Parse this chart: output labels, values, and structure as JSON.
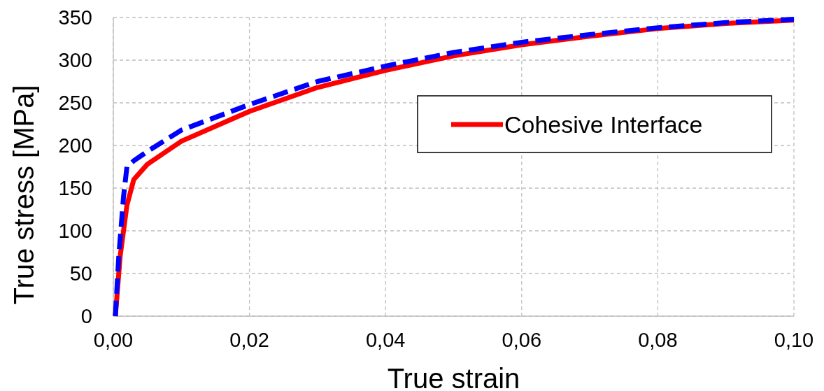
{
  "chart_data": {
    "type": "line",
    "xlabel": "True strain",
    "ylabel": "True stress [MPa]",
    "xlim": [
      0,
      0.1
    ],
    "xticks": [
      {
        "value": 0,
        "label": "0,00"
      },
      {
        "value": 0.02,
        "label": "0,02"
      },
      {
        "value": 0.04,
        "label": "0,04"
      },
      {
        "value": 0.06,
        "label": "0,06"
      },
      {
        "value": 0.08,
        "label": "0,08"
      },
      {
        "value": 0.1,
        "label": "0,10"
      }
    ],
    "ylim": [
      0,
      350
    ],
    "yticks": [
      0,
      50,
      100,
      150,
      200,
      250,
      300,
      350
    ],
    "grid": true,
    "legend": "right",
    "series": [
      {
        "name": "Cohesive Interface",
        "color": "#ff0000",
        "line_style": "solid",
        "x": [
          0.0003,
          0.001,
          0.002,
          0.003,
          0.005,
          0.01,
          0.02,
          0.03,
          0.04,
          0.05,
          0.06,
          0.07,
          0.08,
          0.09,
          0.1
        ],
        "values": [
          0,
          70,
          130,
          160,
          178,
          205,
          240,
          268,
          288,
          305,
          318,
          328,
          337,
          343,
          347
        ]
      },
      {
        "color": "#0000ff",
        "line_style": "dashed",
        "x": [
          0.0003,
          0.0008,
          0.0015,
          0.002,
          0.003,
          0.005,
          0.01,
          0.02,
          0.03,
          0.04,
          0.05,
          0.06,
          0.07,
          0.08,
          0.09,
          0.1
        ],
        "values": [
          0,
          70,
          140,
          175,
          182,
          193,
          218,
          248,
          275,
          293,
          309,
          321,
          330,
          338,
          344,
          348
        ]
      }
    ]
  }
}
